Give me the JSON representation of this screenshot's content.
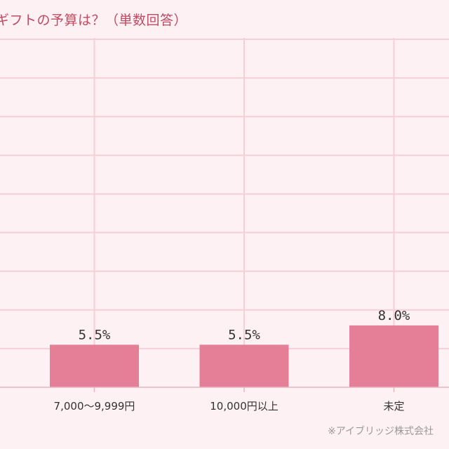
{
  "chart_data": {
    "type": "bar",
    "title": "ギフトの予算は？（単数回答）",
    "categories": [
      "7,000〜9,999円",
      "10,000円以上",
      "未定"
    ],
    "values": [
      5.5,
      5.5,
      8.0
    ],
    "value_labels": [
      "5.5%",
      "5.5%",
      "8.0%"
    ],
    "ylim": [
      0,
      45
    ],
    "grid": true,
    "colors": {
      "bar": "#e57f98",
      "grid": "#f5cfd8",
      "title": "#c04a62",
      "axis": "#e6b5c1",
      "label": "#333333"
    }
  },
  "credit": "※アイブリッジ株式会社"
}
